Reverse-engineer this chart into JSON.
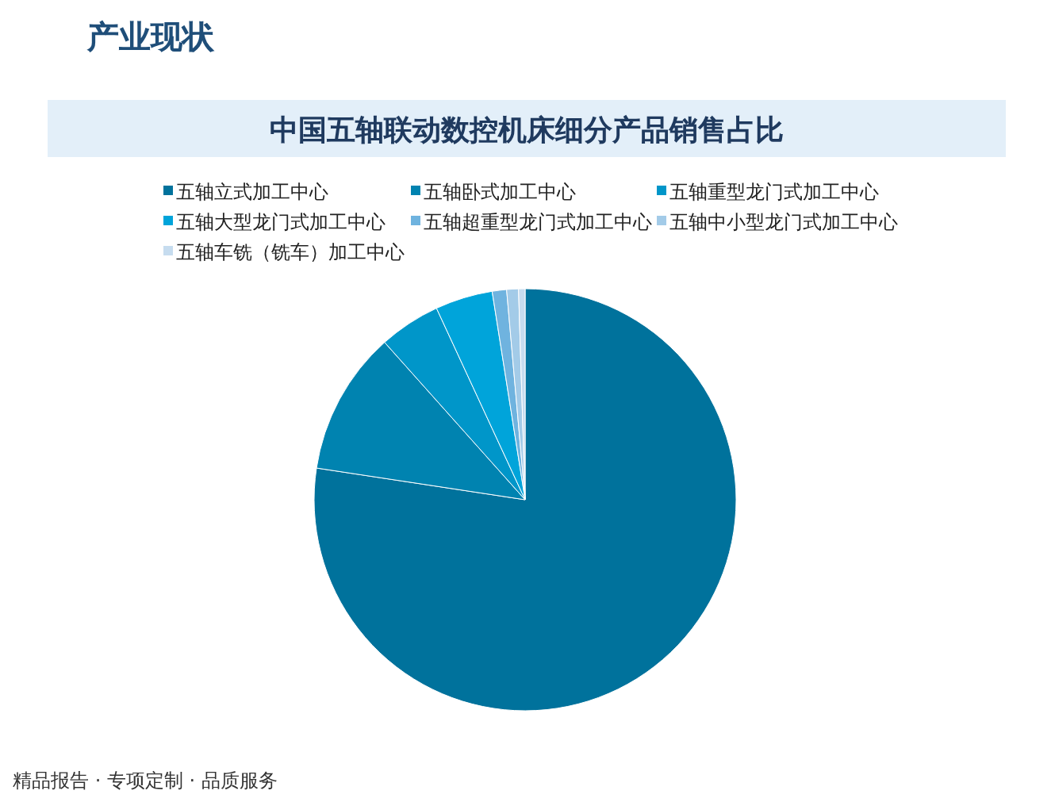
{
  "chart_data": {
    "type": "pie",
    "title": "中国五轴联动数控机床细分产品销售占比",
    "categories": [
      "五轴立式加工中心",
      "五轴卧式加工中心",
      "五轴重型龙门式加工中心",
      "五轴大型龙门式加工中心",
      "五轴超重型龙门式加工中心",
      "五轴中小型龙门式加工中心",
      "五轴车铣（铣车）加工中心"
    ],
    "values": [
      77.4,
      11.0,
      4.7,
      4.4,
      1.1,
      0.9,
      0.5
    ],
    "colors": [
      "#00729c",
      "#0083b0",
      "#0096c9",
      "#00a4da",
      "#6fb3df",
      "#a3cbe8",
      "#c6dcef"
    ],
    "legend": "top",
    "annotations": [
      "产业现状",
      "精品报告 · 专项定制 · 品质服务"
    ]
  }
}
